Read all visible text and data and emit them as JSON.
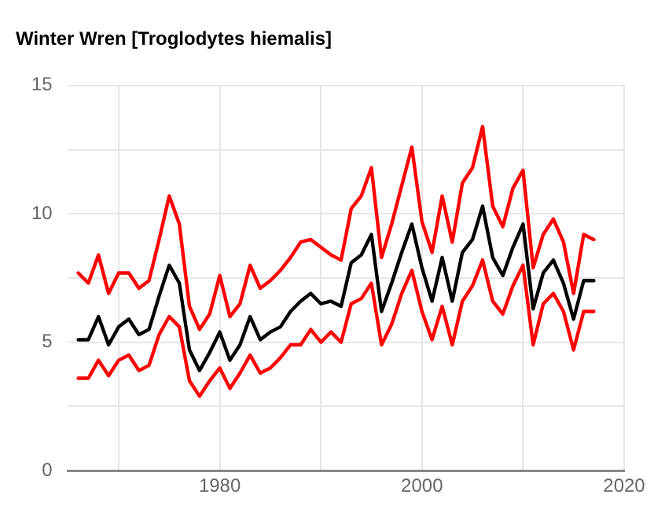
{
  "chart_data": {
    "type": "line",
    "title": "Winter Wren [Troglodytes hiemalis]",
    "x": [
      1966,
      1967,
      1968,
      1969,
      1970,
      1971,
      1972,
      1973,
      1974,
      1975,
      1976,
      1977,
      1978,
      1979,
      1980,
      1981,
      1982,
      1983,
      1984,
      1985,
      1986,
      1987,
      1988,
      1989,
      1990,
      1991,
      1992,
      1993,
      1994,
      1995,
      1996,
      1997,
      1998,
      1999,
      2000,
      2001,
      2002,
      2003,
      2004,
      2005,
      2006,
      2007,
      2008,
      2009,
      2010,
      2011,
      2012,
      2013,
      2014,
      2015,
      2016,
      2017
    ],
    "series": [
      {
        "color": "#ff0000",
        "values": [
          7.7,
          7.3,
          8.4,
          6.9,
          7.7,
          7.7,
          7.1,
          7.4,
          9.0,
          10.7,
          9.6,
          6.4,
          5.5,
          6.1,
          7.6,
          6.0,
          6.5,
          8.0,
          7.1,
          7.4,
          7.8,
          8.3,
          8.9,
          9.0,
          8.7,
          8.4,
          8.2,
          10.2,
          10.7,
          11.8,
          8.3,
          9.6,
          11.1,
          12.6,
          9.7,
          8.5,
          10.7,
          8.9,
          11.2,
          11.8,
          13.4,
          10.3,
          9.5,
          11.0,
          11.7,
          7.9,
          9.2,
          9.8,
          8.9,
          6.9,
          9.2,
          9.0
        ]
      },
      {
        "color": "#ff0000",
        "values": [
          3.6,
          3.6,
          4.3,
          3.7,
          4.3,
          4.5,
          3.9,
          4.1,
          5.3,
          6.0,
          5.6,
          3.5,
          2.9,
          3.5,
          4.0,
          3.2,
          3.8,
          4.5,
          3.8,
          4.0,
          4.4,
          4.9,
          4.9,
          5.5,
          5.0,
          5.4,
          5.0,
          6.5,
          6.7,
          7.3,
          4.9,
          5.7,
          6.9,
          7.8,
          6.2,
          5.1,
          6.4,
          4.9,
          6.6,
          7.2,
          8.2,
          6.6,
          6.1,
          7.2,
          8.0,
          4.9,
          6.5,
          6.9,
          6.2,
          4.7,
          6.2,
          6.2
        ]
      },
      {
        "color": "#000000",
        "values": [
          5.1,
          5.1,
          6.0,
          4.9,
          5.6,
          5.9,
          5.3,
          5.5,
          6.8,
          8.0,
          7.3,
          4.7,
          3.9,
          4.6,
          5.4,
          4.3,
          4.9,
          6.0,
          5.1,
          5.4,
          5.6,
          6.2,
          6.6,
          6.9,
          6.5,
          6.6,
          6.4,
          8.1,
          8.4,
          9.2,
          6.2,
          7.3,
          8.5,
          9.6,
          7.9,
          6.6,
          8.3,
          6.6,
          8.5,
          9.0,
          10.3,
          8.3,
          7.6,
          8.7,
          9.6,
          6.3,
          7.7,
          8.2,
          7.3,
          5.9,
          7.4,
          7.4
        ]
      }
    ],
    "xlim": [
      1965,
      2020
    ],
    "xticks": [
      {
        "value": 1970,
        "label": null
      },
      1980,
      {
        "value": 1990,
        "label": null
      },
      2000,
      {
        "value": 2010,
        "label": null
      },
      2020
    ],
    "ylim": [
      0,
      15
    ],
    "yticks": [
      0,
      {
        "value": 2.5,
        "label": null
      },
      5,
      {
        "value": 7.5,
        "label": null
      },
      10,
      {
        "value": 12.5,
        "label": null
      },
      15
    ],
    "grid": true,
    "legend": false,
    "marker": "none",
    "line_style": "solid"
  }
}
